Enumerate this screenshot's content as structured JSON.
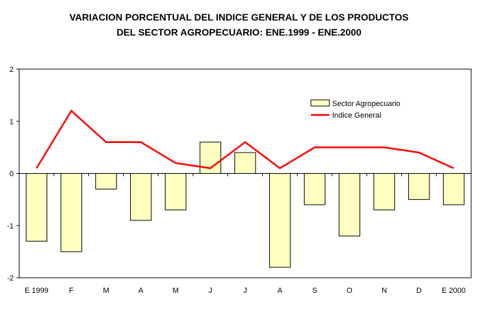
{
  "chart_data": {
    "type": "bar",
    "title_lines": [
      "VARIACION PORCENTUAL DEL INDICE GENERAL Y DE LOS PRODUCTOS",
      "DEL SECTOR AGROPECUARIO: ENE.1999 - ENE.2000"
    ],
    "categories": [
      "E 1999",
      "F",
      "M",
      "A",
      "M",
      "J",
      "J",
      "A",
      "S",
      "O",
      "N",
      "D",
      "E 2000"
    ],
    "series": [
      {
        "name": "Sector Agropecuario",
        "type": "bar",
        "values": [
          -1.3,
          -1.5,
          -0.3,
          -0.9,
          -0.7,
          0.6,
          0.4,
          -1.8,
          -0.6,
          -1.2,
          -0.7,
          -0.5,
          -0.6
        ]
      },
      {
        "name": "Indice General",
        "type": "line",
        "values": [
          0.1,
          1.2,
          0.6,
          0.6,
          0.2,
          0.1,
          0.6,
          0.1,
          0.5,
          0.5,
          0.5,
          0.4,
          0.1
        ]
      }
    ],
    "ylim": [
      -2,
      2
    ],
    "yticks": [
      -2,
      -1,
      0,
      1,
      2
    ],
    "colors": {
      "bar_fill": "#FFFFC0",
      "bar_stroke": "#000000",
      "line": "#FF0000"
    },
    "legend_position": "top-right",
    "grid": false
  }
}
